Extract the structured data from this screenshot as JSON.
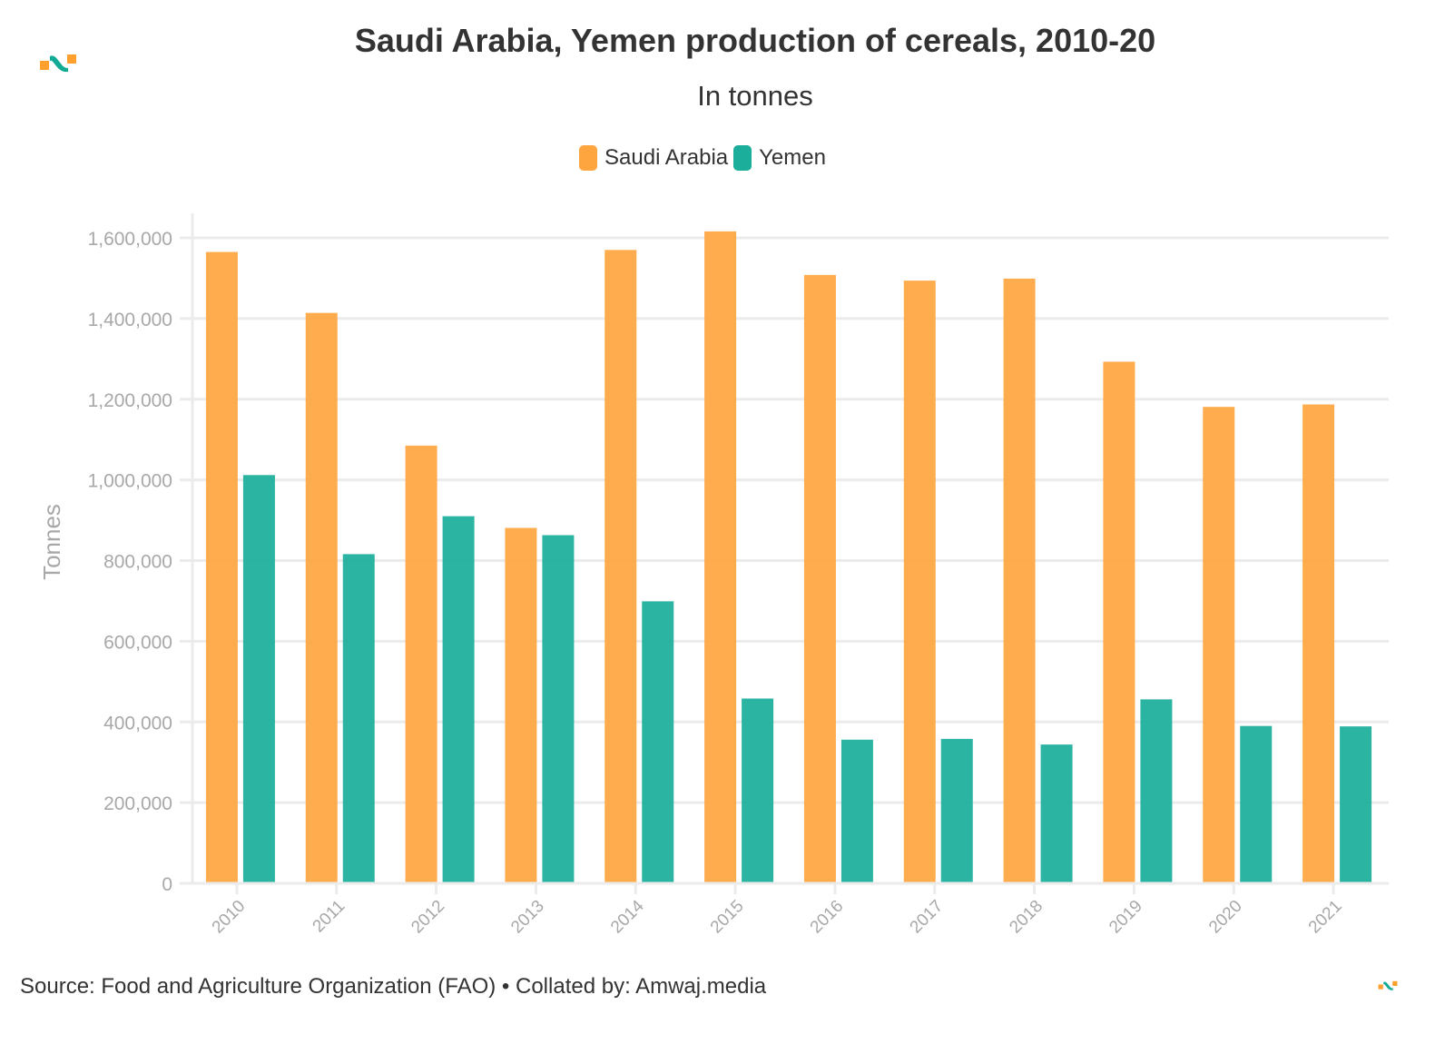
{
  "header": {
    "title": "Saudi Arabia, Yemen production of cereals, 2010-20",
    "subtitle": "In tonnes",
    "logo_icon": "amwaj-logo-icon"
  },
  "legend": [
    {
      "label": "Saudi Arabia",
      "color": "#FFA53F"
    },
    {
      "label": "Yemen",
      "color": "#1AAE9B"
    }
  ],
  "footer": {
    "source": "Source: Food and Agriculture Organization (FAO) • Collated by: Amwaj.media"
  },
  "colors": {
    "saudi": "#FFA53F",
    "yemen": "#1AAE9B",
    "grid": "#ebebeb",
    "tick": "#a8a8a8",
    "logo_orange": "#FF9F2E",
    "logo_teal": "#12A995"
  },
  "chart_data": {
    "type": "bar",
    "title": "Saudi Arabia, Yemen production of cereals, 2010-20",
    "subtitle": "In tonnes",
    "xlabel": "",
    "ylabel": "Tonnes",
    "ylim": [
      0,
      1650000
    ],
    "yticks": [
      0,
      200000,
      400000,
      600000,
      800000,
      1000000,
      1200000,
      1400000,
      1600000
    ],
    "ytick_labels": [
      "0",
      "200,000",
      "400,000",
      "600,000",
      "800,000",
      "1,000,000",
      "1,200,000",
      "1,400,000",
      "1,600,000"
    ],
    "grid": true,
    "legend_position": "top-center",
    "categories": [
      "2010",
      "2011",
      "2012",
      "2013",
      "2014",
      "2015",
      "2016",
      "2017",
      "2018",
      "2019",
      "2020",
      "2021"
    ],
    "series": [
      {
        "name": "Saudi Arabia",
        "values": [
          1565000,
          1414000,
          1085000,
          881000,
          1570000,
          1616000,
          1508000,
          1494000,
          1499000,
          1293000,
          1181000,
          1187000
        ]
      },
      {
        "name": "Yemen",
        "values": [
          1012000,
          816000,
          910000,
          863000,
          699000,
          458000,
          356000,
          358000,
          344000,
          456000,
          390000,
          389000
        ]
      }
    ]
  }
}
